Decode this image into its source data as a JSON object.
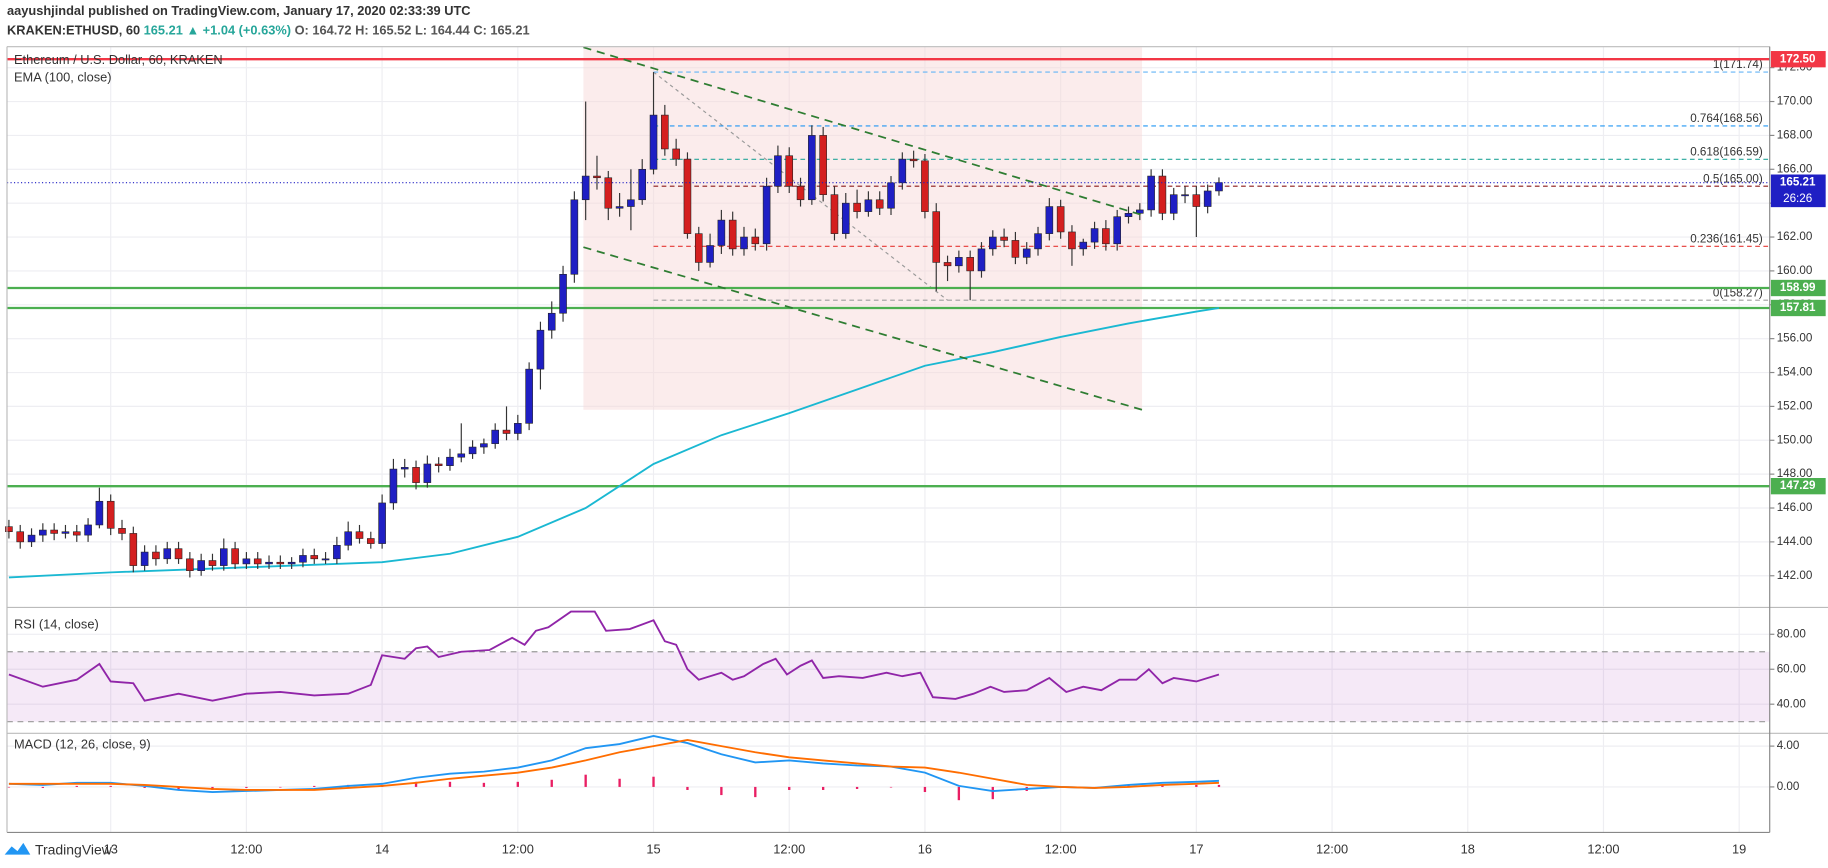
{
  "header": {
    "publisher": "aayushjindal published on TradingView.com, January 17, 2020 02:33:39 UTC",
    "symbol": "KRAKEN:ETHUSD, 60",
    "last": "165.21",
    "change": "▲ +1.04 (+0.63%)",
    "ohlc": "O: 164.72 H: 165.52 L: 164.44 C: 165.21"
  },
  "footer": {
    "brand": "TradingView"
  },
  "chart_data": [
    {
      "type": "candlestick",
      "title": "Ethereum / U.S. Dollar, 60, KRAKEN",
      "up_color": "#1f1fc4",
      "down_color": "#d41f1f",
      "grid": true,
      "x": [
        -9,
        -8,
        -7,
        -6,
        -5,
        -4,
        -3,
        -2,
        -1,
        0,
        1,
        2,
        3,
        4,
        5,
        6,
        7,
        8,
        9,
        10,
        11,
        12,
        13,
        14,
        15,
        16,
        17,
        18,
        19,
        20,
        21,
        22,
        23,
        24,
        25,
        26,
        27,
        28,
        29,
        30,
        31,
        32,
        33,
        34,
        35,
        36,
        37,
        38,
        39,
        40,
        41,
        42,
        43,
        44,
        45,
        46,
        47,
        48,
        49,
        50,
        51,
        52,
        53,
        54,
        55,
        56,
        57,
        58,
        59,
        60,
        61,
        62,
        63,
        64,
        65,
        66,
        67,
        68,
        69,
        70,
        71,
        72,
        73,
        74,
        75,
        76,
        77,
        78,
        79,
        80,
        81,
        82,
        83,
        84,
        85,
        86,
        87,
        88,
        89,
        90,
        91,
        92,
        93,
        94,
        95,
        96,
        97,
        98
      ],
      "open": [
        144.9,
        144.6,
        144.0,
        144.4,
        144.7,
        144.5,
        144.6,
        144.4,
        145.0,
        146.4,
        144.8,
        144.5,
        142.6,
        143.4,
        143.0,
        143.6,
        143.0,
        142.3,
        142.9,
        142.6,
        143.6,
        142.7,
        143.0,
        142.7,
        142.8,
        142.7,
        142.8,
        143.2,
        143.0,
        143.0,
        143.8,
        144.6,
        144.2,
        143.9,
        146.3,
        148.3,
        148.4,
        147.5,
        148.6,
        148.5,
        149.0,
        149.2,
        149.6,
        149.8,
        150.6,
        150.4,
        151.0,
        154.2,
        156.5,
        157.5,
        159.8,
        164.2,
        165.6,
        165.5,
        163.7,
        163.8,
        164.2,
        166.0,
        169.2,
        167.2,
        166.6,
        162.2,
        160.5,
        161.5,
        163.0,
        161.3,
        162.0,
        161.6,
        165.0,
        166.8,
        165.0,
        164.2,
        168.0,
        164.5,
        162.2,
        164.0,
        163.5,
        164.2,
        163.7,
        165.2,
        166.6,
        166.5,
        163.5,
        160.5,
        160.3,
        160.8,
        160.0,
        161.3,
        162.0,
        161.8,
        160.8,
        161.3,
        162.2,
        163.8,
        162.3,
        161.3,
        161.7,
        162.5,
        161.6,
        163.2,
        163.4,
        163.6,
        165.6,
        163.4,
        164.5,
        164.5,
        163.8,
        164.72
      ],
      "high": [
        145.3,
        145.0,
        144.8,
        145.1,
        145.1,
        145.0,
        145.0,
        145.4,
        147.2,
        146.8,
        145.3,
        144.9,
        143.8,
        143.8,
        144.0,
        144.0,
        143.4,
        143.3,
        143.3,
        144.2,
        144.0,
        143.4,
        143.4,
        143.2,
        143.2,
        143.1,
        143.6,
        143.6,
        143.4,
        144.3,
        145.2,
        145.0,
        144.6,
        146.8,
        148.9,
        148.9,
        148.8,
        149.1,
        149.0,
        149.5,
        151.0,
        150.0,
        150.1,
        151.0,
        152.0,
        151.5,
        154.6,
        157.0,
        158.2,
        160.3,
        164.7,
        170.0,
        166.8,
        165.9,
        164.6,
        166.0,
        166.6,
        171.74,
        169.8,
        167.8,
        167.0,
        162.6,
        162.2,
        163.6,
        163.5,
        162.6,
        162.5,
        165.5,
        167.4,
        167.3,
        165.5,
        168.6,
        168.5,
        165.0,
        164.6,
        164.8,
        164.7,
        164.7,
        165.6,
        167.0,
        167.1,
        166.9,
        164.0,
        160.9,
        161.2,
        161.2,
        161.7,
        162.4,
        162.5,
        162.3,
        161.7,
        162.6,
        164.3,
        164.2,
        162.7,
        161.9,
        162.9,
        163.0,
        163.6,
        163.8,
        164.0,
        166.0,
        166.0,
        164.9,
        165.0,
        165.0,
        165.1,
        165.52
      ],
      "low": [
        144.2,
        143.6,
        143.7,
        144.0,
        144.1,
        144.2,
        144.0,
        144.0,
        144.8,
        144.4,
        144.1,
        142.2,
        142.3,
        142.6,
        142.7,
        142.7,
        141.9,
        142.0,
        142.3,
        142.3,
        142.4,
        142.4,
        142.4,
        142.4,
        142.4,
        142.4,
        142.5,
        142.7,
        142.7,
        142.7,
        143.5,
        143.9,
        143.6,
        143.6,
        145.9,
        147.8,
        147.1,
        147.2,
        148.1,
        148.2,
        148.7,
        148.9,
        149.2,
        149.5,
        150.0,
        150.0,
        150.6,
        153.0,
        156.0,
        157.0,
        159.3,
        163.0,
        164.8,
        163.0,
        163.2,
        162.4,
        163.9,
        165.7,
        166.8,
        166.2,
        161.9,
        160.0,
        160.2,
        161.0,
        160.9,
        160.9,
        161.2,
        161.2,
        164.6,
        164.6,
        163.8,
        163.9,
        164.1,
        161.8,
        161.9,
        163.1,
        163.2,
        163.3,
        163.3,
        164.8,
        166.1,
        163.1,
        158.8,
        159.4,
        159.9,
        158.27,
        159.6,
        160.9,
        161.4,
        160.4,
        160.4,
        160.9,
        161.8,
        161.9,
        160.3,
        160.9,
        161.3,
        161.2,
        161.2,
        162.8,
        163.0,
        163.2,
        163.0,
        163.0,
        164.0,
        162.0,
        163.4,
        164.44
      ],
      "close": [
        144.6,
        144.0,
        144.4,
        144.7,
        144.5,
        144.6,
        144.4,
        145.0,
        146.4,
        144.8,
        144.5,
        142.6,
        143.4,
        143.0,
        143.6,
        143.0,
        142.3,
        142.9,
        142.6,
        143.6,
        142.7,
        143.0,
        142.7,
        142.8,
        142.7,
        142.8,
        143.2,
        143.0,
        143.0,
        143.8,
        144.6,
        144.2,
        143.9,
        146.3,
        148.3,
        148.4,
        147.5,
        148.6,
        148.5,
        149.0,
        149.2,
        149.6,
        149.8,
        150.6,
        150.4,
        151.0,
        154.2,
        156.5,
        157.5,
        159.8,
        164.2,
        165.6,
        165.5,
        163.7,
        163.8,
        164.2,
        166.0,
        169.2,
        167.2,
        166.6,
        162.2,
        160.5,
        161.5,
        163.0,
        161.3,
        162.0,
        161.6,
        165.0,
        166.8,
        165.0,
        164.2,
        168.0,
        164.5,
        162.2,
        164.0,
        163.5,
        164.2,
        163.7,
        165.2,
        166.6,
        166.5,
        163.5,
        160.5,
        160.3,
        160.8,
        160.0,
        161.3,
        162.0,
        161.8,
        160.8,
        161.3,
        162.2,
        163.8,
        162.3,
        161.3,
        161.7,
        162.5,
        161.6,
        163.2,
        163.4,
        163.6,
        165.6,
        163.4,
        164.5,
        164.5,
        163.8,
        164.72,
        165.21
      ],
      "overlays": [
        {
          "name": "EMA (100, close)",
          "color": "#1ab8d2",
          "x": [
            -9,
            0,
            12,
            24,
            30,
            36,
            42,
            48,
            54,
            60,
            66,
            72,
            78,
            84,
            90,
            96,
            98
          ],
          "values": [
            141.9,
            142.2,
            142.5,
            142.8,
            143.3,
            144.3,
            146.0,
            148.6,
            150.3,
            151.6,
            153.0,
            154.4,
            155.2,
            156.1,
            156.9,
            157.6,
            157.81
          ]
        }
      ],
      "hlines": [
        {
          "value": 172.5,
          "label": "172.50",
          "color": "#f23645"
        },
        {
          "value": 158.99,
          "label": "158.99",
          "color": "#4caf50"
        },
        {
          "value": 157.81,
          "label": "157.81",
          "color": "#4caf50"
        },
        {
          "value": 147.29,
          "label": "147.29",
          "color": "#4caf50"
        }
      ],
      "fib_x": [
        48,
        74
      ],
      "fib": [
        {
          "value": 171.74,
          "label": "1(171.74)",
          "color": "#64b5f6"
        },
        {
          "value": 168.56,
          "label": "0.764(168.56)",
          "color": "#2196f3"
        },
        {
          "value": 166.59,
          "label": "0.618(166.59)",
          "color": "#26a69a"
        },
        {
          "value": 165.0,
          "label": "0.5(165.00)",
          "color": "#8b1a1a"
        },
        {
          "value": 161.45,
          "label": "0.236(161.45)",
          "color": "#e53935"
        },
        {
          "value": 158.27,
          "label": "0(158.27)",
          "color": "#9e9e9e"
        }
      ],
      "trendlines": [
        {
          "x": [
            41.8,
            91.2
          ],
          "y": [
            173.2,
            163.3
          ]
        },
        {
          "x": [
            41.8,
            91.2
          ],
          "y": [
            161.4,
            151.8
          ]
        }
      ],
      "trend_color": "#2e7d32",
      "last_price": {
        "value": 165.21,
        "label": "165.21",
        "countdown": "26:26"
      },
      "xlim": [
        -9.17,
        146.7
      ],
      "xticks": [
        {
          "value": 0,
          "label": "13"
        },
        {
          "value": 12,
          "label": "12:00"
        },
        {
          "value": 24,
          "label": "14"
        },
        {
          "value": 36,
          "label": "12:00"
        },
        {
          "value": 48,
          "label": "15"
        },
        {
          "value": 60,
          "label": "12:00"
        },
        {
          "value": 72,
          "label": "16"
        },
        {
          "value": 84,
          "label": "12:00"
        },
        {
          "value": 96,
          "label": "17"
        },
        {
          "value": 108,
          "label": "12:00"
        },
        {
          "value": 120,
          "label": "18"
        },
        {
          "value": 132,
          "label": "12:00"
        },
        {
          "value": 144,
          "label": "19"
        }
      ],
      "ylim": [
        140.2,
        173.24
      ],
      "yticks": [
        {
          "value": 142,
          "label": "142.00"
        },
        {
          "value": 144,
          "label": "144.00"
        },
        {
          "value": 146,
          "label": "146.00"
        },
        {
          "value": 148,
          "label": "148.00"
        },
        {
          "value": 150,
          "label": "150.00"
        },
        {
          "value": 152,
          "label": "152.00"
        },
        {
          "value": 154,
          "label": "154.00"
        },
        {
          "value": 156,
          "label": "156.00"
        },
        {
          "value": 158,
          "label": "158.00"
        },
        {
          "value": 160,
          "label": "160.00"
        },
        {
          "value": 162,
          "label": "162.00"
        },
        {
          "value": 164,
          "label": "164.00"
        },
        {
          "value": 166,
          "label": "166.00"
        },
        {
          "value": 168,
          "label": "168.00"
        },
        {
          "value": 170,
          "label": "170.00"
        },
        {
          "value": 172,
          "label": "172.00"
        }
      ]
    },
    {
      "type": "line",
      "title": "RSI (14, close)",
      "bands": [
        30,
        70
      ],
      "band_color": "#9c27b0",
      "series": [
        {
          "color": "#9025a8",
          "x": [
            -9,
            -6,
            -3,
            -1,
            0,
            2,
            3,
            6,
            9,
            12,
            15,
            18,
            21,
            23,
            24,
            26,
            27,
            28,
            29,
            31,
            33.5,
            35.5,
            36.6,
            37.6,
            38.7,
            40.7,
            42.8,
            43.8,
            45.9,
            48,
            49,
            50,
            51,
            52,
            54,
            55,
            56,
            57.7,
            58.8,
            59.8,
            61,
            62,
            63,
            64.4,
            66.5,
            68.6,
            70,
            71.6,
            72.7,
            74.7,
            76.3,
            77.8,
            79,
            81,
            83,
            84.5,
            86,
            87.6,
            89.2,
            90.7,
            91.8,
            93,
            94,
            96,
            98
          ],
          "values": [
            57,
            50,
            54,
            63,
            53,
            52,
            42,
            46,
            42,
            46,
            47,
            45,
            46,
            51,
            68,
            66,
            72,
            73,
            67,
            70,
            71,
            78,
            74,
            82,
            84,
            93,
            93,
            82,
            83,
            88,
            76,
            74,
            60,
            54,
            58,
            54,
            56,
            63,
            66,
            57,
            62,
            65,
            55,
            56,
            55,
            58,
            56,
            58,
            44,
            43,
            46,
            50,
            47,
            48,
            55,
            47,
            50,
            48,
            54,
            54,
            60,
            52,
            55,
            53,
            57
          ]
        }
      ],
      "ylim": [
        24,
        94.7
      ],
      "yticks": [
        {
          "value": 40,
          "label": "40.00"
        },
        {
          "value": 60,
          "label": "60.00"
        },
        {
          "value": 80,
          "label": "80.00"
        }
      ]
    },
    {
      "type": "macd",
      "title": "MACD (12, 26, close, 9)",
      "x": [
        -9,
        -6,
        -3,
        0,
        3,
        6,
        9,
        12,
        15,
        18,
        21,
        24,
        27,
        30,
        33,
        36,
        39,
        42,
        45,
        48,
        51,
        54,
        57,
        60,
        63,
        66,
        69,
        72,
        75,
        78,
        81,
        84,
        87,
        90,
        93,
        96,
        98
      ],
      "series": [
        {
          "color": "#2196f3",
          "values": [
            0.3,
            0.2,
            0.4,
            0.4,
            0.1,
            -0.3,
            -0.5,
            -0.4,
            -0.3,
            -0.2,
            0.1,
            0.3,
            0.9,
            1.3,
            1.5,
            1.9,
            2.6,
            3.8,
            4.2,
            5.0,
            4.3,
            3.2,
            2.4,
            2.6,
            2.3,
            2.1,
            2.0,
            1.4,
            0.1,
            -0.4,
            -0.2,
            0.0,
            -0.1,
            0.2,
            0.4,
            0.5,
            0.6
          ]
        },
        {
          "color": "#ff6d00",
          "values": [
            0.3,
            0.3,
            0.3,
            0.3,
            0.2,
            0.0,
            -0.2,
            -0.3,
            -0.3,
            -0.3,
            -0.1,
            0.1,
            0.4,
            0.8,
            1.1,
            1.4,
            1.9,
            2.6,
            3.4,
            4.0,
            4.6,
            4.0,
            3.4,
            2.9,
            2.6,
            2.3,
            2.0,
            1.9,
            1.4,
            0.8,
            0.2,
            0.0,
            -0.1,
            0.0,
            0.2,
            0.3,
            0.4
          ]
        }
      ],
      "histogram": {
        "color": "#e91e63",
        "values": [
          0.0,
          -0.1,
          0.1,
          0.1,
          -0.1,
          -0.3,
          -0.3,
          -0.1,
          0.0,
          0.1,
          0.2,
          0.2,
          0.5,
          0.5,
          0.4,
          0.5,
          0.7,
          1.2,
          0.8,
          1.0,
          -0.3,
          -0.8,
          -1.0,
          -0.3,
          -0.3,
          -0.2,
          0.0,
          -0.5,
          -1.3,
          -1.2,
          -0.4,
          0.0,
          0.0,
          0.2,
          0.2,
          0.2,
          0.2
        ]
      },
      "ylim": [
        -4.46,
        5.14
      ],
      "yticks": [
        {
          "value": 0,
          "label": "0.00"
        },
        {
          "value": 4,
          "label": "4.00"
        }
      ]
    }
  ]
}
